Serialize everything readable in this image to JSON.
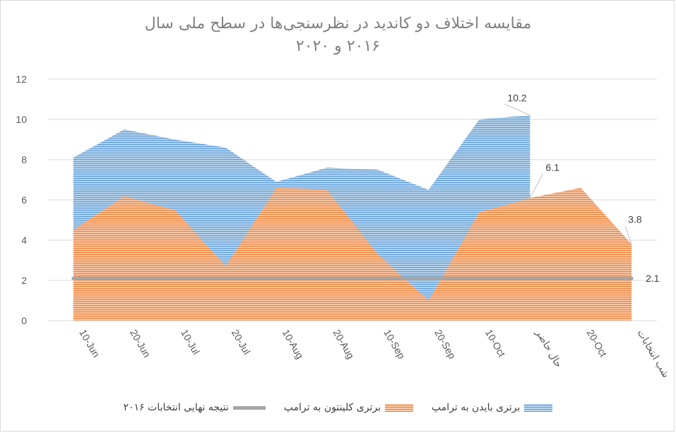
{
  "chart_data": {
    "type": "area",
    "title_line1": "مقایسه اختلاف دو کاندید در نظرسنجی‌ها در سطح ملی سال",
    "title_line2": "۲۰۱۶ و ۲۰۲۰",
    "categories": [
      "10-Jun",
      "20-Jun",
      "10-Jul",
      "20-Jul",
      "10-Aug",
      "20-Aug",
      "10-Sep",
      "20-Sep",
      "10-Oct",
      "حال حاضر",
      "20-Oct",
      "شب انتخابات"
    ],
    "ylim": [
      0,
      12
    ],
    "yticks": [
      "0",
      "2",
      "4",
      "6",
      "8",
      "10",
      "12"
    ],
    "series": [
      {
        "name": "برتری بایدن به ترامپ",
        "type": "area",
        "color": "#5b9bd5",
        "values": [
          8.1,
          9.5,
          9.0,
          8.6,
          6.9,
          7.6,
          7.5,
          6.5,
          10.0,
          10.2,
          null,
          null
        ],
        "label_index": 9,
        "label": "10.2"
      },
      {
        "name": "برتری کلینتون به ترامپ",
        "type": "area",
        "color": "#ed7d31",
        "values": [
          4.5,
          6.2,
          5.5,
          2.7,
          6.6,
          6.5,
          3.3,
          1.0,
          5.4,
          6.1,
          6.6,
          3.8
        ],
        "label_index": 9,
        "label": "6.1",
        "label2_index": 11,
        "label2": "3.8"
      },
      {
        "name": "نتیجه نهایی انتخابات ۲۰۱۶",
        "type": "line",
        "color": "#a5a5a5",
        "values": [
          2.1,
          2.1,
          2.1,
          2.1,
          2.1,
          2.1,
          2.1,
          2.1,
          2.1,
          2.1,
          2.1,
          2.1
        ],
        "label": "2.1"
      }
    ],
    "grid": true,
    "legend_position": "bottom"
  }
}
